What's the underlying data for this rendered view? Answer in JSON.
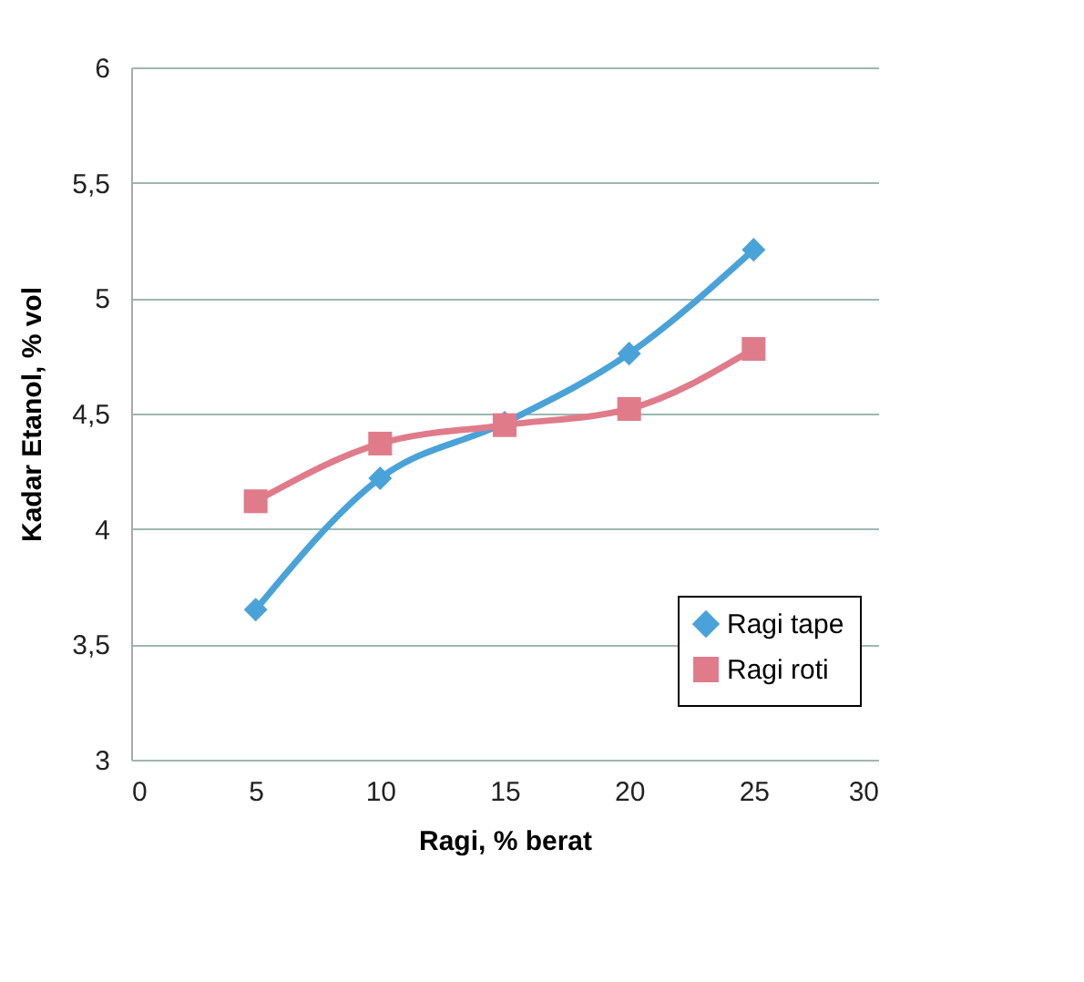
{
  "chart_data": {
    "type": "line",
    "xlabel": "Ragi, % berat",
    "ylabel": "Kadar Etanol, % vol",
    "x": [
      5,
      10,
      15,
      20,
      25
    ],
    "series": [
      {
        "name": "Ragi tape",
        "color": "#4aa3d8",
        "marker": "diamond",
        "values": [
          3.65,
          4.22,
          4.46,
          4.76,
          5.21
        ]
      },
      {
        "name": "Ragi roti",
        "color": "#e07b8a",
        "marker": "square",
        "values": [
          4.12,
          4.37,
          4.45,
          4.52,
          4.78
        ]
      }
    ],
    "xlim": [
      0,
      30
    ],
    "xticks": [
      0,
      5,
      10,
      15,
      20,
      25,
      30
    ],
    "ylim": [
      3,
      6
    ],
    "yticks": [
      3,
      {
        "value": 3.5,
        "label": "3,5"
      },
      4,
      {
        "value": 4.5,
        "label": "4,5"
      },
      5,
      {
        "value": 5.5,
        "label": "5,5"
      },
      6
    ],
    "grid": "y",
    "legend": "bottom right",
    "line_style": "solid"
  }
}
